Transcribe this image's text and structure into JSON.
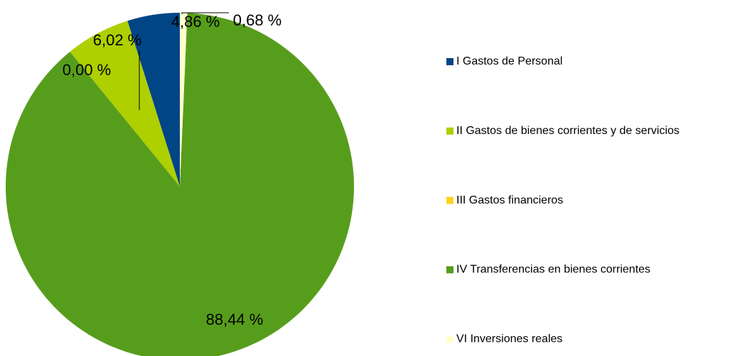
{
  "chart_data": {
    "type": "pie",
    "categories": [
      "I Gastos de Personal",
      "II Gastos de bienes corrientes y de servicios",
      "III Gastos financieros",
      "IV Transferencias en bienes corrientes",
      "VI Inversiones reales"
    ],
    "values": [
      4.86,
      6.02,
      0.0,
      88.44,
      0.68
    ],
    "value_labels": [
      "4,86 %",
      "6,02 %",
      "0,00 %",
      "88,44 %",
      "0,68 %"
    ],
    "colors": [
      "#004586",
      "#aecf00",
      "#ffd320",
      "#579d1c",
      "#ffffcc"
    ],
    "legend": "right"
  }
}
